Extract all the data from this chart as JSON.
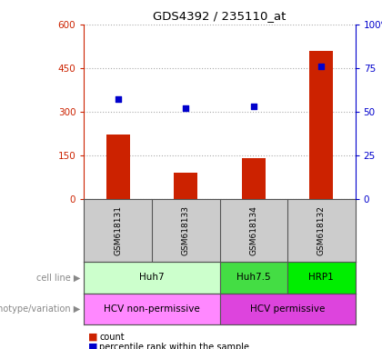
{
  "title": "GDS4392 / 235110_at",
  "samples": [
    "GSM618131",
    "GSM618133",
    "GSM618134",
    "GSM618132"
  ],
  "counts": [
    220,
    90,
    140,
    510
  ],
  "percentiles": [
    57,
    52,
    53,
    76
  ],
  "left_ylim": [
    0,
    600
  ],
  "left_yticks": [
    0,
    150,
    300,
    450,
    600
  ],
  "right_ylim": [
    0,
    100
  ],
  "right_yticks": [
    0,
    25,
    50,
    75,
    100
  ],
  "bar_color": "#cc2200",
  "dot_color": "#0000cc",
  "cell_groups": [
    {
      "label": "Huh7",
      "indices": [
        0,
        1
      ],
      "color": "#ccffcc"
    },
    {
      "label": "Huh7.5",
      "indices": [
        2
      ],
      "color": "#44dd44"
    },
    {
      "label": "HRP1",
      "indices": [
        3
      ],
      "color": "#00ee00"
    }
  ],
  "geno_groups": [
    {
      "label": "HCV non-permissive",
      "indices": [
        0,
        1
      ],
      "color": "#ff88ff"
    },
    {
      "label": "HCV permissive",
      "indices": [
        2,
        3
      ],
      "color": "#dd44dd"
    }
  ],
  "row_label_cell_line": "cell line",
  "row_label_genotype": "genotype/variation",
  "legend_count": "count",
  "legend_percentile": "percentile rank within the sample",
  "sample_row_bg": "#cccccc",
  "border_color": "#555555"
}
